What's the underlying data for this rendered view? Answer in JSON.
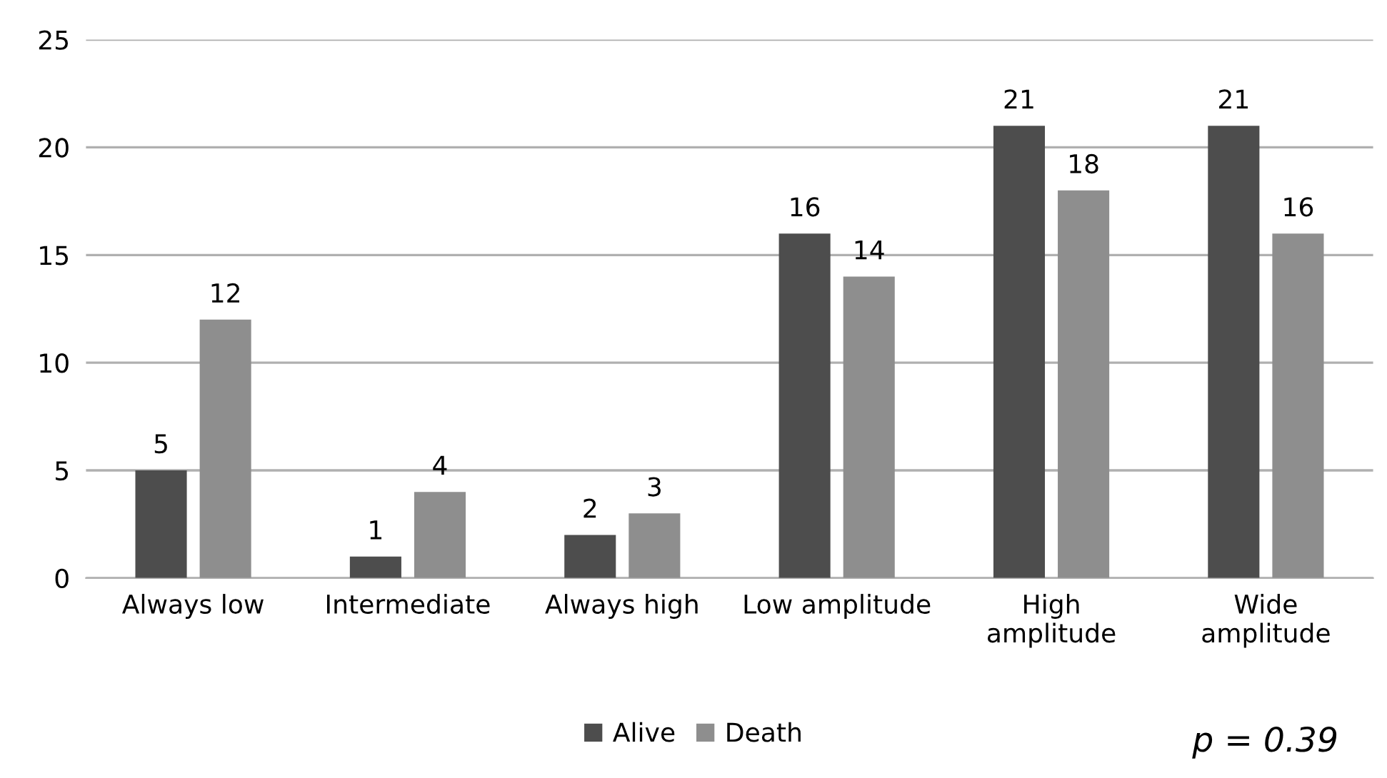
{
  "chart_data": {
    "type": "bar",
    "categories": [
      "Always low",
      "Intermediate",
      "Always high",
      "Low amplitude",
      "High\namplitude",
      "Wide\namplitude"
    ],
    "series": [
      {
        "name": "Alive",
        "color": "#4d4d4d",
        "values": [
          5,
          1,
          2,
          16,
          21,
          21
        ]
      },
      {
        "name": "Death",
        "color": "#8e8e8e",
        "values": [
          12,
          4,
          3,
          14,
          18,
          16
        ]
      }
    ],
    "ylim": [
      0,
      25
    ],
    "yticks": [
      0,
      5,
      10,
      15,
      20,
      25
    ],
    "grid": "y",
    "legend": "bottom",
    "data_labels": true,
    "annotations": [
      "p = 0.39"
    ]
  }
}
